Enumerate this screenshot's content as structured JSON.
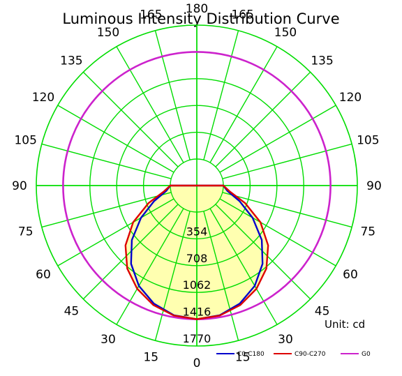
{
  "chart_data": {
    "type": "polar",
    "title": "Luminous Intensity Distribution Curve",
    "unit_label": "Unit: cd",
    "radial_ticks": [
      354,
      708,
      1062,
      1416,
      1770
    ],
    "angle_labels_right": [
      "0",
      "15",
      "30",
      "45",
      "60",
      "75",
      "90",
      "105",
      "120",
      "135",
      "150",
      "165",
      "180"
    ],
    "angle_labels_left": [
      "15",
      "30",
      "45",
      "60",
      "75",
      "90",
      "105",
      "120",
      "135",
      "150",
      "165"
    ],
    "grid_color": "#00dd00",
    "center_fill": "#ffffb0",
    "series": [
      {
        "name": "C0-C180",
        "color": "#0000cc",
        "angles": [
          0,
          10,
          20,
          30,
          40,
          50,
          60,
          70,
          80,
          90
        ],
        "values": [
          1416,
          1390,
          1310,
          1180,
          1000,
          770,
          500,
          250,
          60,
          0
        ]
      },
      {
        "name": "C90-C270",
        "color": "#dd0000",
        "angles": [
          0,
          10,
          20,
          30,
          40,
          50,
          60,
          70,
          80,
          90
        ],
        "values": [
          1416,
          1395,
          1330,
          1225,
          1080,
          880,
          620,
          330,
          90,
          0
        ]
      },
      {
        "name": "G0",
        "color": "#cc22cc",
        "angles": [
          0,
          180
        ],
        "values": [
          1416,
          1416
        ]
      }
    ]
  }
}
